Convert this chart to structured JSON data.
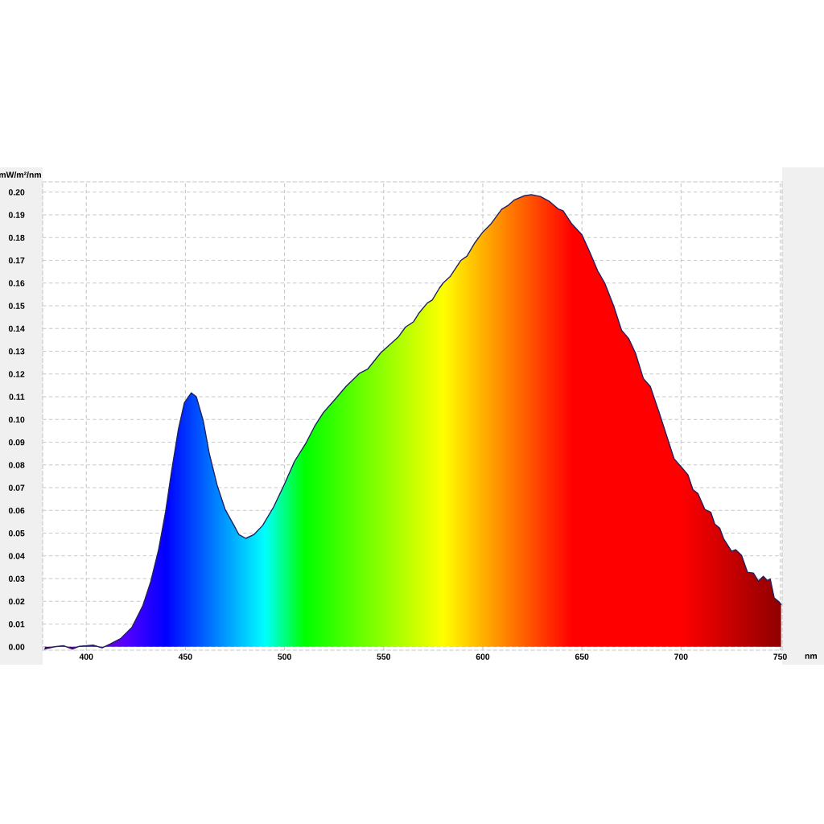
{
  "chart_data": {
    "type": "line",
    "xlabel": "nm",
    "ylabel": "mW/m²/nm",
    "grid": true,
    "x": [
      379,
      384,
      388.5,
      393,
      396.5,
      403.5,
      408,
      412,
      417.5,
      423,
      428.5,
      432.5,
      436.5,
      440,
      443,
      446.5,
      449.5,
      453,
      455.5,
      459,
      462,
      466,
      470,
      474.5,
      477,
      480.5,
      484.5,
      489,
      494.5,
      500,
      505,
      511,
      515.5,
      519.5,
      526,
      531,
      538,
      542,
      548.5,
      557.5,
      561,
      565,
      568,
      572,
      574.5,
      578,
      580,
      583.5,
      589,
      592,
      596,
      600,
      604,
      609.5,
      613,
      616,
      621,
      624.5,
      629,
      633.5,
      638,
      640.5,
      645,
      650,
      654,
      658,
      661.5,
      666,
      670,
      673.5,
      677,
      681,
      684.5,
      689,
      693,
      696.5,
      700,
      703.5,
      706,
      708.5,
      712,
      715,
      717,
      719.5,
      721.5,
      725.5,
      727.5,
      730.5,
      733.5,
      736.5,
      739,
      741.5,
      743.5,
      745,
      747,
      749.5,
      750.5
    ],
    "series": [
      {
        "color": "#202060",
        "values": [
          -0.001,
          0.0,
          0.0005,
          -0.001,
          0.0002,
          0.0007,
          -0.0005,
          0.0012,
          0.0037,
          0.0085,
          0.018,
          0.0286,
          0.0428,
          0.0593,
          0.077,
          0.0958,
          0.1074,
          0.1117,
          0.11,
          0.0994,
          0.0852,
          0.0711,
          0.0605,
          0.0534,
          0.0493,
          0.0477,
          0.0493,
          0.0534,
          0.0615,
          0.0716,
          0.0815,
          0.0899,
          0.0975,
          0.1029,
          0.1094,
          0.1145,
          0.1204,
          0.1222,
          0.1293,
          0.1364,
          0.1406,
          0.1429,
          0.147,
          0.1512,
          0.1525,
          0.1576,
          0.16,
          0.1628,
          0.17,
          0.1718,
          0.1777,
          0.1824,
          0.1859,
          0.1924,
          0.1943,
          0.1966,
          0.1984,
          0.1989,
          0.1981,
          0.196,
          0.1926,
          0.1918,
          0.1859,
          0.1812,
          0.1735,
          0.1653,
          0.16,
          0.15,
          0.1392,
          0.1357,
          0.1292,
          0.118,
          0.1145,
          0.1029,
          0.0921,
          0.0827,
          0.0792,
          0.0756,
          0.0691,
          0.0674,
          0.0604,
          0.0592,
          0.054,
          0.0522,
          0.0475,
          0.042,
          0.0427,
          0.0403,
          0.0328,
          0.0324,
          0.0289,
          0.031,
          0.0292,
          0.0298,
          0.0215,
          0.0197,
          0.0186
        ]
      }
    ],
    "xlim": [
      378,
      751
    ],
    "ylim": [
      -0.0015,
      0.2045
    ],
    "xticks": [
      400,
      450,
      500,
      550,
      600,
      650,
      700,
      750
    ],
    "yticks": [
      {
        "value": 0,
        "label": "0.00"
      },
      {
        "value": 0.01,
        "label": "0.01"
      },
      {
        "value": 0.02,
        "label": "0.02"
      },
      {
        "value": 0.03,
        "label": "0.03"
      },
      {
        "value": 0.04,
        "label": "0.04"
      },
      {
        "value": 0.05,
        "label": "0.05"
      },
      {
        "value": 0.06,
        "label": "0.06"
      },
      {
        "value": 0.07,
        "label": "0.07"
      },
      {
        "value": 0.08,
        "label": "0.08"
      },
      {
        "value": 0.09,
        "label": "0.09"
      },
      {
        "value": 0.1,
        "label": "0.10"
      },
      {
        "value": 0.11,
        "label": "0.11"
      },
      {
        "value": 0.12,
        "label": "0.12"
      },
      {
        "value": 0.13,
        "label": "0.13"
      },
      {
        "value": 0.14,
        "label": "0.14"
      },
      {
        "value": 0.15,
        "label": "0.15"
      },
      {
        "value": 0.16,
        "label": "0.16"
      },
      {
        "value": 0.17,
        "label": "0.17"
      },
      {
        "value": 0.18,
        "label": "0.18"
      },
      {
        "value": 0.19,
        "label": "0.19"
      },
      {
        "value": 0.2,
        "label": "0.20"
      }
    ]
  }
}
